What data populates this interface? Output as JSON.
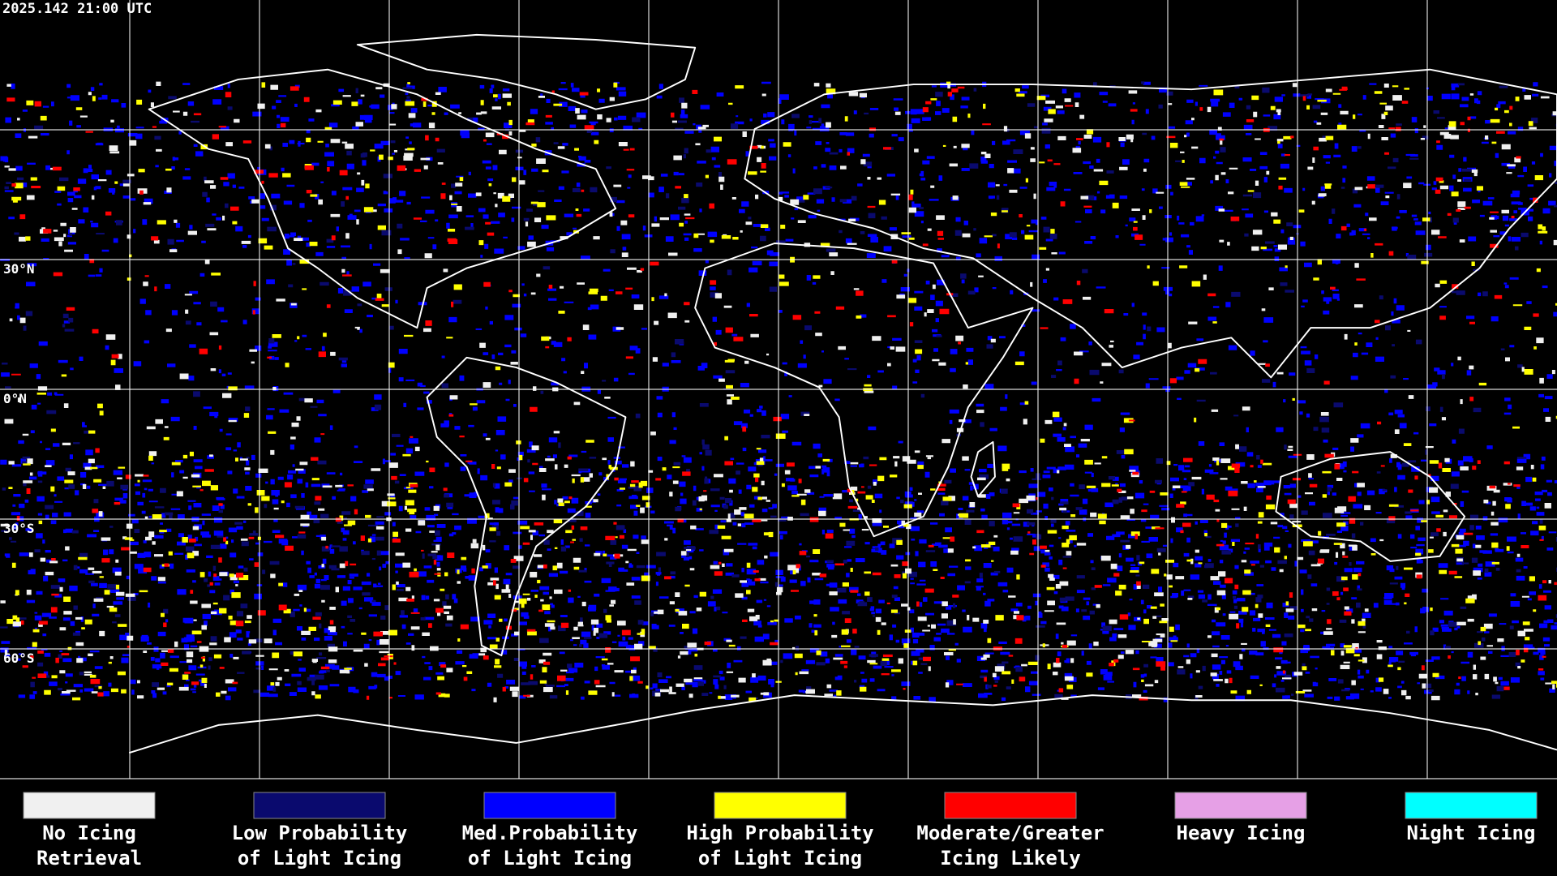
{
  "timestamp": "2025.142 21:00 UTC",
  "latitude_labels": [
    "30°N",
    "0°N",
    "30°S",
    "60°S"
  ],
  "legend": [
    {
      "color": "#f0f0f0",
      "label_lines": [
        "No Icing",
        "Retrieval"
      ]
    },
    {
      "color": "#0a0a6e",
      "label_lines": [
        "Low Probability",
        "of Light Icing"
      ]
    },
    {
      "color": "#0000ff",
      "label_lines": [
        "Med.Probability",
        "of Light Icing"
      ]
    },
    {
      "color": "#ffff00",
      "label_lines": [
        "High Probability",
        "of Light Icing"
      ]
    },
    {
      "color": "#ff0000",
      "label_lines": [
        "Moderate/Greater",
        "Icing Likely"
      ]
    },
    {
      "color": "#e6a0e6",
      "label_lines": [
        "Heavy Icing"
      ]
    },
    {
      "color": "#00ffff",
      "label_lines": [
        "Night Icing"
      ]
    }
  ]
}
